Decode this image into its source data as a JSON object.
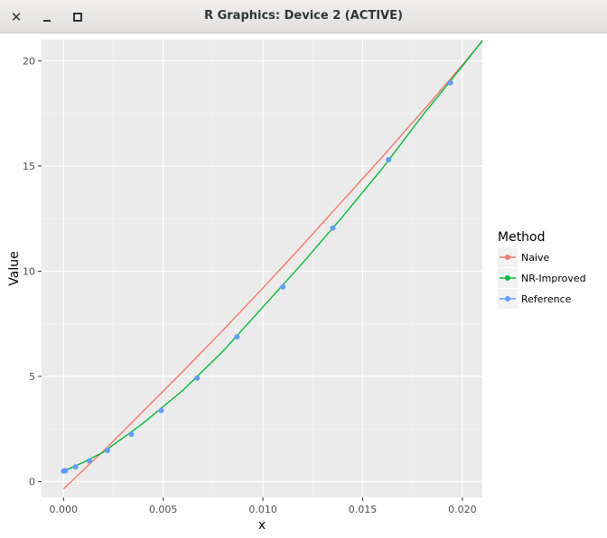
{
  "window": {
    "title": "R Graphics: Device 2 (ACTIVE)",
    "close_icon": "close-icon",
    "minimize_icon": "minimize-icon",
    "maximize_icon": "maximize-icon"
  },
  "chart_data": {
    "type": "line",
    "title": "",
    "xlabel": "x",
    "ylabel": "Value",
    "xlim": [
      -0.0011,
      0.021
    ],
    "ylim": [
      -0.75,
      21.0
    ],
    "x_ticks": [
      0.0,
      0.005,
      0.01,
      0.015,
      0.02
    ],
    "x_tick_labels": [
      "0.000",
      "0.005",
      "0.010",
      "0.015",
      "0.020"
    ],
    "y_ticks": [
      0,
      5,
      10,
      15,
      20
    ],
    "y_tick_labels": [
      "0",
      "5",
      "10",
      "15",
      "20"
    ],
    "grid": true,
    "background": "#ebebeb",
    "legend": {
      "title": "Method",
      "placement": "right",
      "entries": [
        "Naive",
        "NR-Improved",
        "Reference"
      ]
    },
    "series": [
      {
        "name": "Naive",
        "color": "#f8766d",
        "kind": "line",
        "x": [
          0.0,
          0.002,
          0.004,
          0.006,
          0.008,
          0.01,
          0.012,
          0.014,
          0.016,
          0.018,
          0.02,
          0.021
        ],
        "y": [
          -0.35,
          1.45,
          3.35,
          5.25,
          7.2,
          9.2,
          11.25,
          13.35,
          15.45,
          17.6,
          19.8,
          20.95
        ]
      },
      {
        "name": "NR-Improved",
        "color": "#00ba38",
        "kind": "line",
        "x": [
          0.0,
          0.0005,
          0.001,
          0.002,
          0.004,
          0.006,
          0.008,
          0.01,
          0.012,
          0.014,
          0.016,
          0.018,
          0.02,
          0.021
        ],
        "y": [
          0.5,
          0.7,
          0.92,
          1.4,
          2.78,
          4.35,
          6.2,
          8.3,
          10.4,
          12.6,
          14.9,
          17.4,
          19.75,
          20.95
        ]
      },
      {
        "name": "Reference",
        "color": "#619cff",
        "kind": "points",
        "x": [
          0.0,
          0.0001,
          0.0006,
          0.0013,
          0.0022,
          0.0034,
          0.0049,
          0.0067,
          0.0087,
          0.011,
          0.0135,
          0.0163,
          0.0194
        ],
        "y": [
          0.5,
          0.52,
          0.7,
          0.98,
          1.48,
          2.25,
          3.38,
          4.92,
          6.88,
          9.25,
          12.05,
          15.3,
          18.95
        ]
      }
    ]
  }
}
